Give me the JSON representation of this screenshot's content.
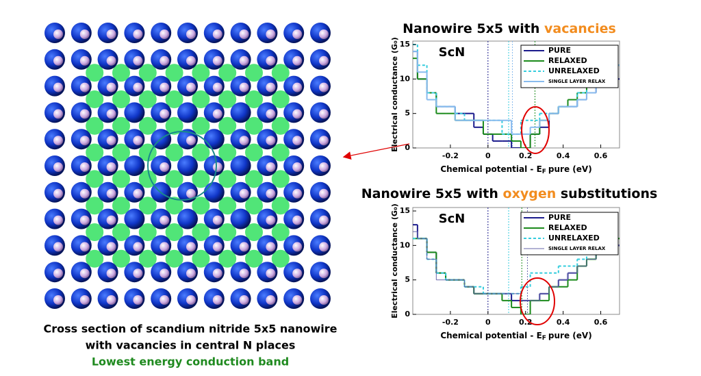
{
  "caption": {
    "line1": "Cross section of scandium nitride 5x5 nanowire",
    "line2": "with vacancies in central N places",
    "line3": "Lowest energy conduction band"
  },
  "chart_data": [
    {
      "type": "line",
      "step": "mid",
      "title": "Nanowire 5x5 with ",
      "title_highlight": "vacancies",
      "title_highlight_color": "#f28c1e",
      "annotation": "ScN",
      "xlabel": "Chemical potential - E",
      "xlabel_sub": "F",
      "xlabel_end": "pure (eV)",
      "ylabel": "Electrical conductance (G₀)",
      "xlim": [
        -0.4,
        0.7
      ],
      "ylim": [
        0,
        15.5
      ],
      "xticks": [
        -0.2,
        0,
        0.2,
        0.4,
        0.6
      ],
      "yticks": [
        0,
        5,
        10,
        15
      ],
      "legend": "upper right",
      "x": [
        -0.4,
        -0.35,
        -0.3,
        -0.25,
        -0.2,
        -0.15,
        -0.1,
        -0.05,
        0,
        0.05,
        0.1,
        0.15,
        0.2,
        0.25,
        0.3,
        0.35,
        0.4,
        0.45,
        0.5,
        0.55,
        0.6,
        0.65,
        0.7
      ],
      "series": [
        {
          "name": "PURE",
          "color": "#1a1a8c",
          "fermi": 0,
          "values": [
            14,
            10,
            8,
            6,
            6,
            5,
            5,
            3,
            2,
            1,
            1,
            0,
            0,
            2,
            3,
            5,
            6,
            6,
            7,
            8,
            9,
            10,
            10
          ]
        },
        {
          "name": "RELAXED",
          "color": "#1b8a1b",
          "fermi": 0.25,
          "values": [
            13,
            10,
            8,
            5,
            5,
            4,
            4,
            4,
            2,
            2,
            2,
            1,
            0,
            2,
            4,
            5,
            6,
            7,
            8,
            9,
            9,
            11,
            12
          ]
        },
        {
          "name": "UNRELAXED",
          "color": "#33ccdd",
          "dashed": true,
          "fermi": 0.11,
          "values": [
            15,
            12,
            8,
            6,
            6,
            5,
            4,
            4,
            4,
            4,
            2,
            2,
            4,
            4,
            5,
            5,
            6,
            6,
            8,
            10,
            12,
            12,
            12
          ]
        },
        {
          "name": "SINGLE LAYER RELAX",
          "color": "#88bbee",
          "fermi": 0.13,
          "values": [
            14,
            11,
            7,
            6,
            6,
            4,
            4,
            4,
            4,
            4,
            4,
            2,
            2,
            3,
            4,
            5,
            6,
            6,
            7,
            8,
            10,
            11,
            12
          ]
        }
      ]
    },
    {
      "type": "line",
      "step": "mid",
      "title": "Nanowire 5x5 with ",
      "title_highlight": "oxygen",
      "title_end": " substitutions",
      "title_highlight_color": "#f28c1e",
      "annotation": "ScN",
      "xlabel": "Chemical potential - E",
      "xlabel_sub": "F",
      "xlabel_end": "pure (eV)",
      "ylabel": "Electrical conductance (G₀)",
      "xlim": [
        -0.4,
        0.7
      ],
      "ylim": [
        0,
        15.5
      ],
      "xticks": [
        -0.2,
        0,
        0.2,
        0.4,
        0.6
      ],
      "yticks": [
        0,
        5,
        10,
        15
      ],
      "legend": "upper right",
      "x": [
        -0.4,
        -0.35,
        -0.3,
        -0.25,
        -0.2,
        -0.15,
        -0.1,
        -0.05,
        0,
        0.05,
        0.1,
        0.15,
        0.2,
        0.25,
        0.3,
        0.35,
        0.4,
        0.45,
        0.5,
        0.55,
        0.6,
        0.65,
        0.7
      ],
      "series": [
        {
          "name": "PURE",
          "color": "#1a1a8c",
          "fermi": 0,
          "values": [
            13,
            11,
            9,
            6,
            5,
            5,
            4,
            3,
            3,
            3,
            3,
            2,
            2,
            2,
            3,
            4,
            5,
            6,
            7,
            8,
            10,
            10,
            10
          ]
        },
        {
          "name": "RELAXED",
          "color": "#1b8a1b",
          "fermi": 0.18,
          "values": [
            11,
            11,
            9,
            6,
            5,
            5,
            4,
            3,
            3,
            3,
            2,
            1,
            0,
            2,
            2,
            4,
            4,
            5,
            7,
            8,
            9,
            10,
            11
          ]
        },
        {
          "name": "UNRELAXED",
          "color": "#33ccdd",
          "dashed": true,
          "fermi": 0.11,
          "values": [
            11,
            11,
            8,
            6,
            5,
            5,
            4,
            4,
            3,
            3,
            3,
            3,
            4,
            6,
            6,
            6,
            7,
            7,
            8,
            9,
            10,
            11,
            11
          ]
        },
        {
          "name": "SINGLE LAYER RELAX",
          "color": "#6666aa",
          "thin": true,
          "fermi": 0.21,
          "values": [
            12,
            11,
            8,
            5,
            5,
            5,
            4,
            3,
            3,
            3,
            3,
            3,
            2,
            2,
            3,
            4,
            5,
            6,
            7,
            8,
            10,
            10,
            10
          ]
        }
      ]
    }
  ]
}
